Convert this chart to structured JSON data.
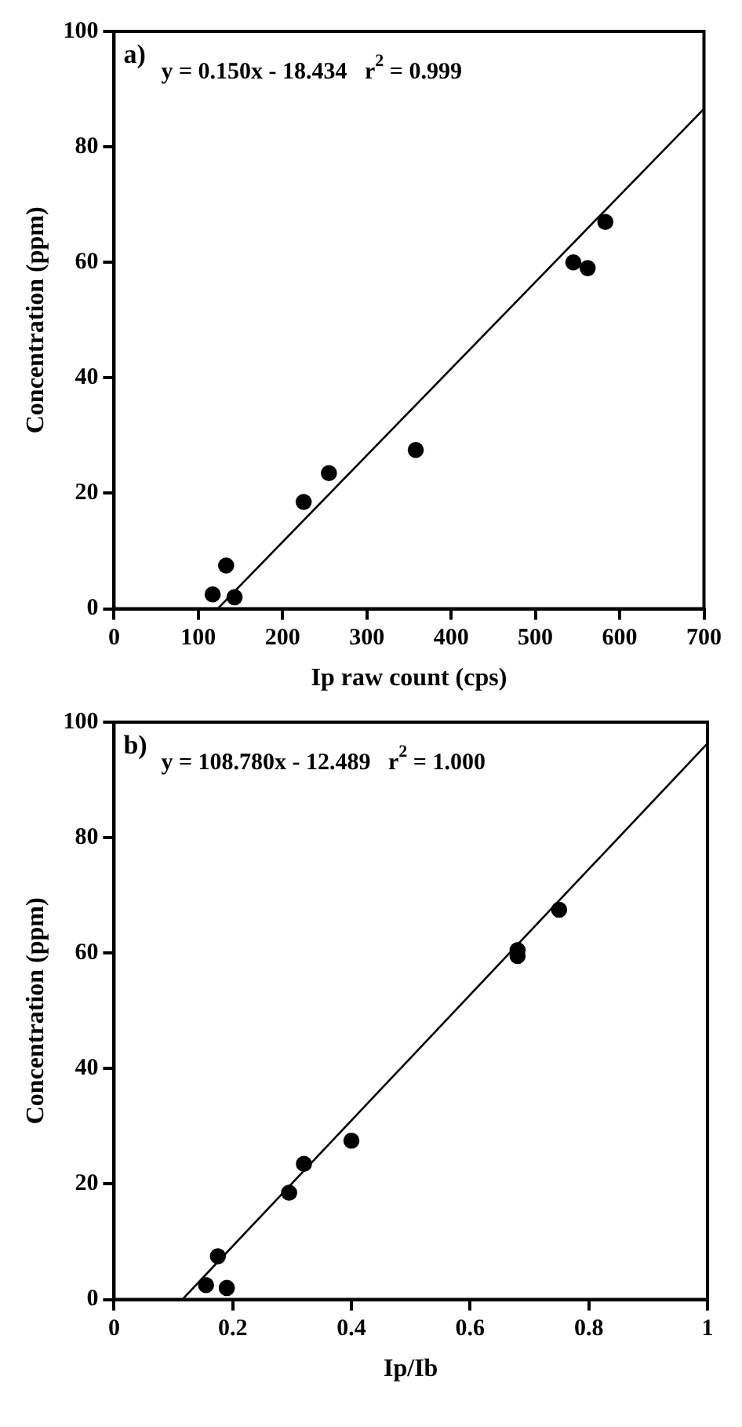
{
  "chart_data": [
    {
      "type": "scatter",
      "xlabel": "Ip raw count (cps)",
      "ylabel": "Concentration (ppm)",
      "annotations": [
        "a)",
        "y = 0.150x - 18.434   r$^{2}$ = 0.999"
      ],
      "xlim": [
        0,
        700
      ],
      "xticks": [
        0,
        100,
        200,
        300,
        400,
        500,
        600,
        700
      ],
      "ylim": [
        0,
        100
      ],
      "yticks": [
        0,
        20,
        40,
        60,
        80,
        100
      ],
      "grid": false,
      "legend": false,
      "marker": "circle",
      "series": [
        {
          "color": "#000000",
          "x": [
            117,
            133,
            143,
            225,
            255,
            358,
            545,
            562,
            583
          ],
          "values": [
            2.5,
            7.5,
            2,
            18.5,
            23.5,
            27.5,
            60,
            59,
            67
          ]
        },
        {
          "type": "line",
          "marker": "none",
          "line_style": "solid",
          "color": "#000000",
          "x": [
            122.9,
            700
          ],
          "values": [
            0,
            86.6
          ]
        }
      ]
    },
    {
      "type": "scatter",
      "xlabel": "Ip/Ib",
      "ylabel": "Concentration (ppm)",
      "annotations": [
        "b)",
        "y = 108.780x - 12.489   r$^{2}$ = 1.000"
      ],
      "xlim": [
        0,
        1
      ],
      "xticks": [
        0,
        0.2,
        0.4,
        0.6,
        0.8,
        1
      ],
      "ylim": [
        0,
        100
      ],
      "yticks": [
        0,
        20,
        40,
        60,
        80,
        100
      ],
      "grid": false,
      "legend": false,
      "marker": "circle",
      "series": [
        {
          "color": "#000000",
          "x": [
            0.155,
            0.175,
            0.19,
            0.295,
            0.32,
            0.4,
            0.68,
            0.68,
            0.75
          ],
          "values": [
            2.5,
            7.5,
            2,
            18.5,
            23.5,
            27.5,
            59.5,
            60.5,
            67.5
          ]
        },
        {
          "type": "line",
          "marker": "none",
          "line_style": "solid",
          "color": "#000000",
          "x": [
            0.115,
            1
          ],
          "values": [
            0,
            96.3
          ]
        }
      ]
    }
  ]
}
